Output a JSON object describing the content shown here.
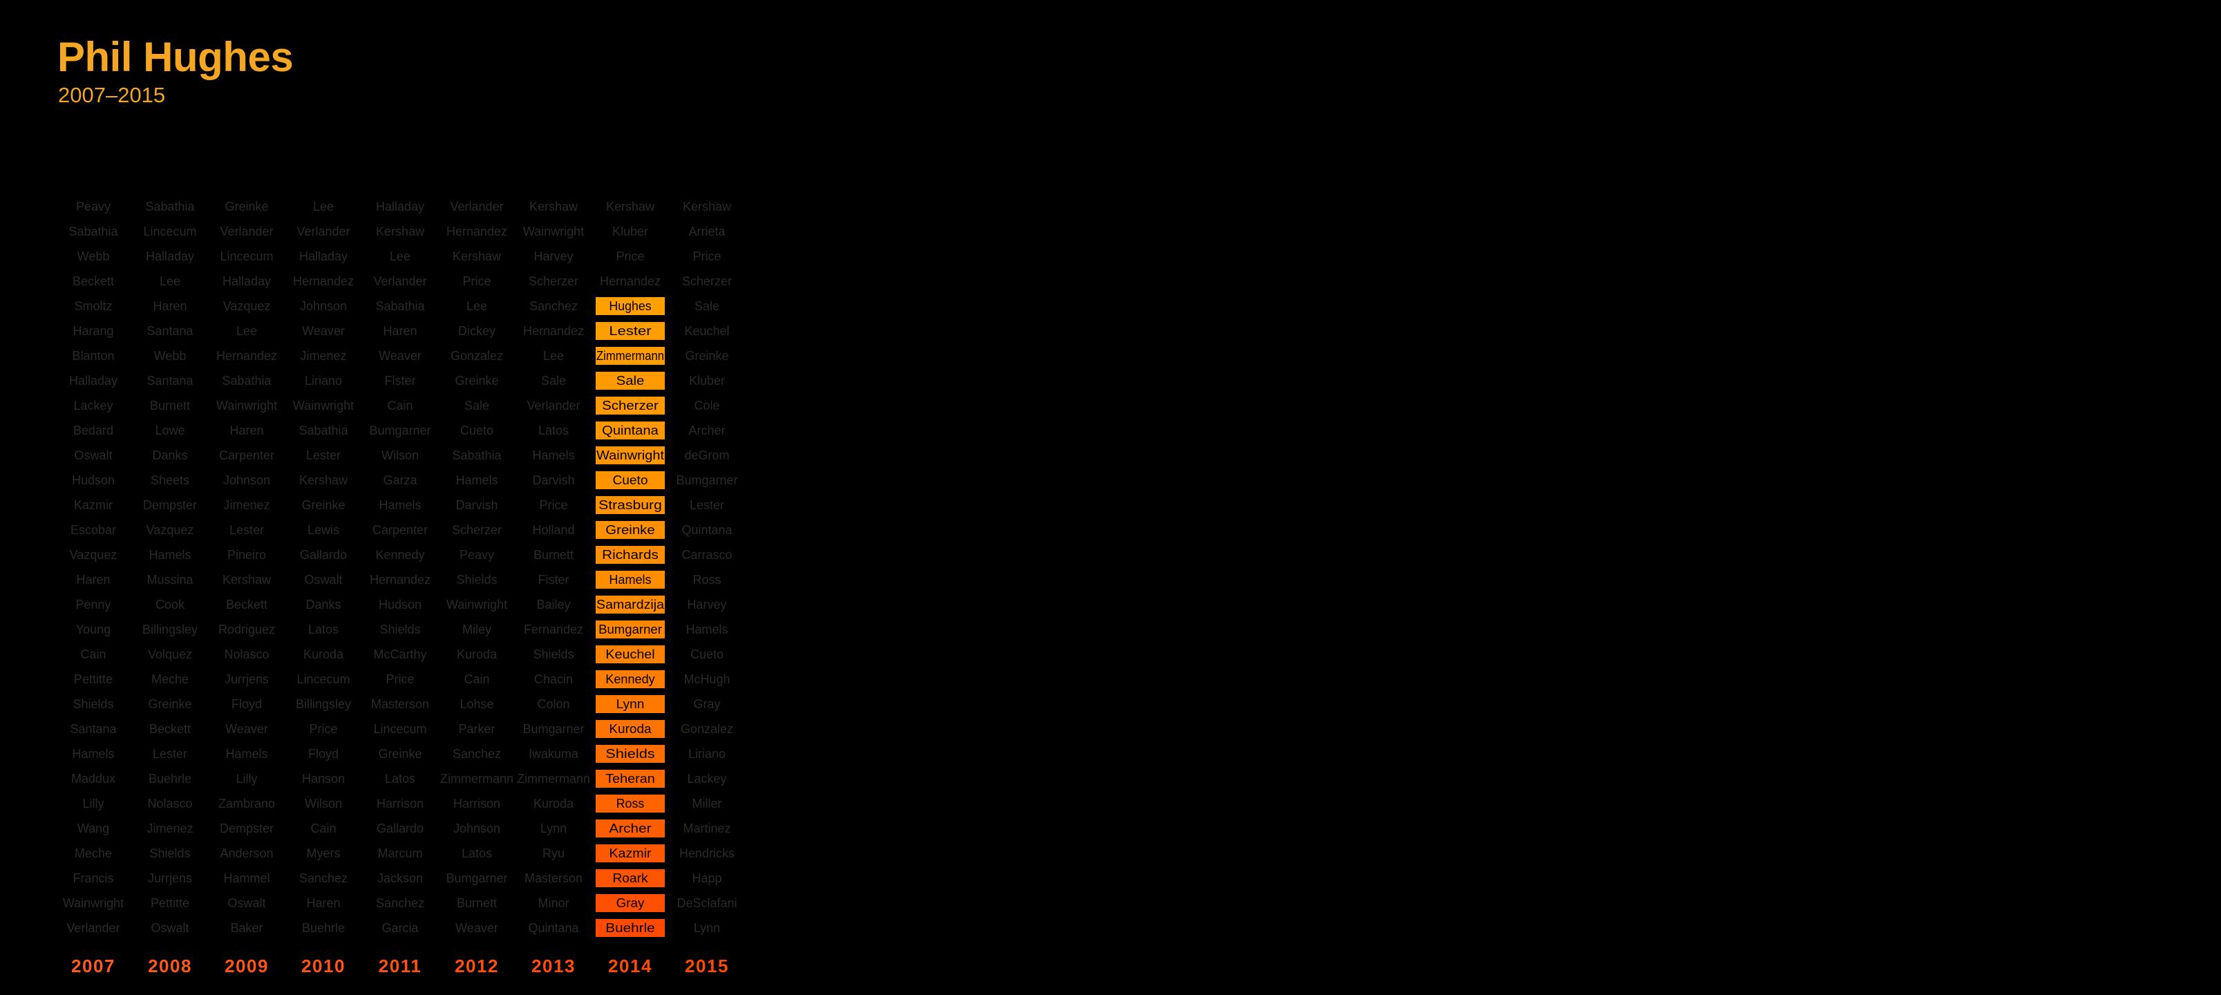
{
  "chart_data": {
    "type": "table",
    "title": "Phil Hughes",
    "subtitle": "2007–2015",
    "highlight": "Hughes",
    "highlight_year": "2014",
    "colors": {
      "background": "#000000",
      "title": "#f5a623",
      "dim_text": "#2a2a2a",
      "highlight_text": "#000000",
      "gradient_top": "#ffa000",
      "gradient_mid": "#ff8a00",
      "gradient_bottom": "#ff4a00",
      "year_top": "#ff5a1f",
      "year_bottom": "#ff4a00"
    },
    "years": [
      "2007",
      "2008",
      "2009",
      "2010",
      "2011",
      "2012",
      "2013",
      "2014",
      "2015"
    ],
    "columns": [
      [
        "Peavy",
        "Sabathia",
        "Webb",
        "Beckett",
        "Smoltz",
        "Harang",
        "Blanton",
        "Halladay",
        "Lackey",
        "Bedard",
        "Oswalt",
        "Hudson",
        "Kazmir",
        "Escobar",
        "Vazquez",
        "Haren",
        "Penny",
        "Young",
        "Cain",
        "Pettitte",
        "Shields",
        "Santana",
        "Hamels",
        "Maddux",
        "Lilly",
        "Wang",
        "Meche",
        "Francis",
        "Wainwright",
        "Verlander"
      ],
      [
        "Sabathia",
        "Lincecum",
        "Halladay",
        "Lee",
        "Haren",
        "Santana",
        "Webb",
        "Santana",
        "Burnett",
        "Lowe",
        "Danks",
        "Sheets",
        "Dempster",
        "Vazquez",
        "Hamels",
        "Mussina",
        "Cook",
        "Billingsley",
        "Volquez",
        "Meche",
        "Greinke",
        "Beckett",
        "Lester",
        "Buehrle",
        "Nolasco",
        "Jimenez",
        "Shields",
        "Jurrjens",
        "Pettitte",
        "Oswalt"
      ],
      [
        "Greinke",
        "Verlander",
        "Lincecum",
        "Halladay",
        "Vazquez",
        "Lee",
        "Hernandez",
        "Sabathia",
        "Wainwright",
        "Haren",
        "Carpenter",
        "Johnson",
        "Jimenez",
        "Lester",
        "Pineiro",
        "Kershaw",
        "Beckett",
        "Rodriguez",
        "Nolasco",
        "Jurrjens",
        "Floyd",
        "Weaver",
        "Hamels",
        "Lilly",
        "Zambrano",
        "Dempster",
        "Anderson",
        "Hammel",
        "Oswalt",
        "Baker"
      ],
      [
        "Lee",
        "Verlander",
        "Halladay",
        "Hernandez",
        "Johnson",
        "Weaver",
        "Jimenez",
        "Liriano",
        "Wainwright",
        "Sabathia",
        "Lester",
        "Kershaw",
        "Greinke",
        "Lewis",
        "Gallardo",
        "Oswalt",
        "Danks",
        "Latos",
        "Kuroda",
        "Lincecum",
        "Billingsley",
        "Price",
        "Floyd",
        "Hanson",
        "Wilson",
        "Cain",
        "Myers",
        "Sanchez",
        "Haren",
        "Buehrle"
      ],
      [
        "Halladay",
        "Kershaw",
        "Lee",
        "Verlander",
        "Sabathia",
        "Haren",
        "Weaver",
        "Fister",
        "Cain",
        "Bumgarner",
        "Wilson",
        "Garza",
        "Hamels",
        "Carpenter",
        "Kennedy",
        "Hernandez",
        "Hudson",
        "Shields",
        "McCarthy",
        "Price",
        "Masterson",
        "Lincecum",
        "Greinke",
        "Latos",
        "Harrison",
        "Gallardo",
        "Marcum",
        "Jackson",
        "Sanchez",
        "Garcia"
      ],
      [
        "Verlander",
        "Hernandez",
        "Kershaw",
        "Price",
        "Lee",
        "Dickey",
        "Gonzalez",
        "Greinke",
        "Sale",
        "Cueto",
        "Sabathia",
        "Hamels",
        "Darvish",
        "Scherzer",
        "Peavy",
        "Shields",
        "Wainwright",
        "Miley",
        "Kuroda",
        "Cain",
        "Lohse",
        "Parker",
        "Sanchez",
        "Zimmermann",
        "Harrison",
        "Johnson",
        "Latos",
        "Bumgarner",
        "Burnett",
        "Weaver"
      ],
      [
        "Kershaw",
        "Wainwright",
        "Harvey",
        "Scherzer",
        "Sanchez",
        "Hernandez",
        "Lee",
        "Sale",
        "Verlander",
        "Latos",
        "Hamels",
        "Darvish",
        "Price",
        "Holland",
        "Burnett",
        "Fister",
        "Bailey",
        "Fernandez",
        "Shields",
        "Chacin",
        "Colon",
        "Bumgarner",
        "Iwakuma",
        "Zimmermann",
        "Kuroda",
        "Lynn",
        "Ryu",
        "Masterson",
        "Minor",
        "Quintana"
      ],
      [
        "Kershaw",
        "Kluber",
        "Price",
        "Hernandez",
        "Hughes",
        "Lester",
        "Zimmermann",
        "Sale",
        "Scherzer",
        "Quintana",
        "Wainwright",
        "Cueto",
        "Strasburg",
        "Greinke",
        "Richards",
        "Hamels",
        "Samardzija",
        "Bumgarner",
        "Keuchel",
        "Kennedy",
        "Lynn",
        "Kuroda",
        "Shields",
        "Teheran",
        "Ross",
        "Archer",
        "Kazmir",
        "Roark",
        "Gray",
        "Buehrle"
      ],
      [
        "Kershaw",
        "Arrieta",
        "Price",
        "Scherzer",
        "Sale",
        "Keuchel",
        "Greinke",
        "Kluber",
        "Cole",
        "Archer",
        "deGrom",
        "Bumgarner",
        "Lester",
        "Quintana",
        "Carrasco",
        "Ross",
        "Harvey",
        "Hamels",
        "Cueto",
        "McHugh",
        "Gray",
        "Gonzalez",
        "Liriano",
        "Lackey",
        "Miller",
        "Martinez",
        "Hendricks",
        "Happ",
        "DeSclafani",
        "Lynn"
      ]
    ]
  }
}
